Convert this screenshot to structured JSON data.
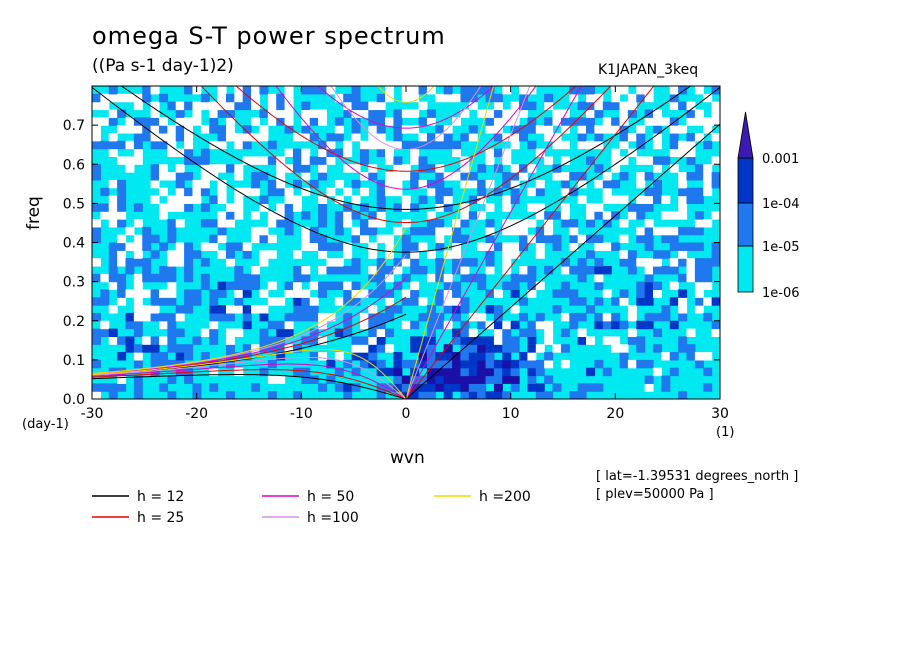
{
  "chart_data": {
    "type": "heatmap",
    "title": "omega S-T power spectrum",
    "units": "((Pa s-1 day-1)2)",
    "dataset_label": "K1JAPAN_3keq",
    "xlabel": "wvn",
    "x_units": "(1)",
    "ylabel": "freq",
    "y_units": "(day-1)",
    "xlim": [
      -30,
      30
    ],
    "ylim": [
      0,
      0.8
    ],
    "x_ticks": [
      -30,
      -20,
      -10,
      0,
      10,
      20,
      30
    ],
    "x_tick_labels": [
      "-30",
      "-20",
      "-10",
      "0",
      "10",
      "20",
      "30"
    ],
    "y_ticks": [
      0.0,
      0.1,
      0.2,
      0.3,
      0.4,
      0.5,
      0.6,
      0.7
    ],
    "y_tick_labels": [
      "0.0",
      "0.1",
      "0.2",
      "0.3",
      "0.4",
      "0.5",
      "0.6",
      "0.7"
    ],
    "colorbar": {
      "levels": [
        "1e-06",
        "1e-05",
        "1e-04",
        "0.001"
      ],
      "colors": [
        "#00e8f0",
        "#1f78ee",
        "#0036c8",
        "#1a10a8",
        "#3a1ab0"
      ]
    },
    "dispersion_curves": [
      {
        "name": "h = 12",
        "color": "#000000",
        "h": 12
      },
      {
        "name": "h = 25",
        "color": "#e60000",
        "h": 25
      },
      {
        "name": "h = 50",
        "color": "#e000c8",
        "h": 50
      },
      {
        "name": "h =100",
        "color": "#d890e8",
        "h": 100
      },
      {
        "name": "h =200",
        "color": "#f0d800",
        "h": 200
      }
    ],
    "annotations": [
      "[ lat=-1.39531 degrees_north ]",
      "[ plev=50000 Pa ]"
    ]
  }
}
